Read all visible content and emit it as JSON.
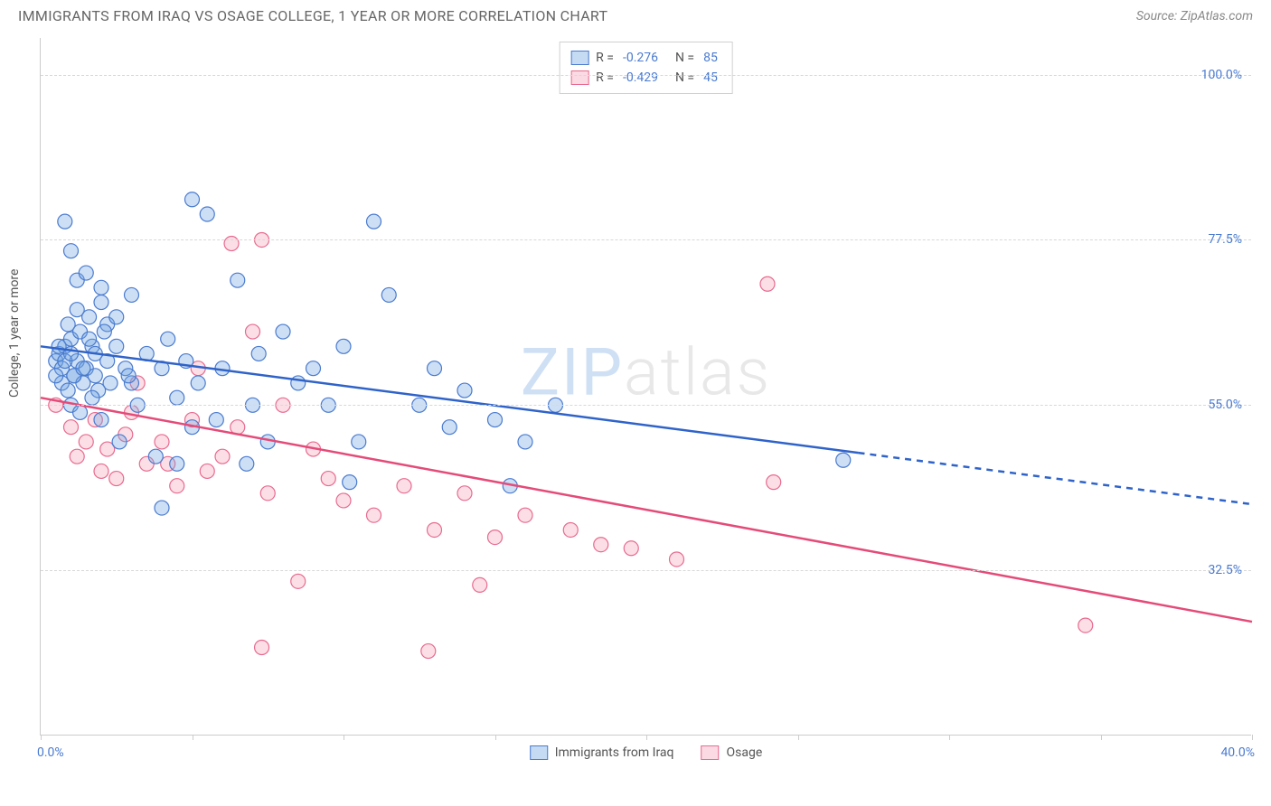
{
  "header": {
    "title": "IMMIGRANTS FROM IRAQ VS OSAGE COLLEGE, 1 YEAR OR MORE CORRELATION CHART",
    "source": "Source: ZipAtlas.com"
  },
  "chart": {
    "type": "scatter",
    "ylabel": "College, 1 year or more",
    "xlim": [
      0,
      40
    ],
    "ylim": [
      10,
      105
    ],
    "xticks": [
      0,
      5,
      10,
      15,
      20,
      25,
      30,
      35,
      40
    ],
    "x_label_min": "0.0%",
    "x_label_max": "40.0%",
    "yticks": [
      {
        "v": 32.5,
        "label": "32.5%"
      },
      {
        "v": 55.0,
        "label": "55.0%"
      },
      {
        "v": 77.5,
        "label": "77.5%"
      },
      {
        "v": 100.0,
        "label": "100.0%"
      }
    ],
    "background_color": "#ffffff",
    "grid_color": "#d8d8d8",
    "marker_radius": 8,
    "marker_fill_opacity": 0.35,
    "marker_stroke_width": 1.2,
    "line_width": 2.5,
    "dash_pattern": "7 6",
    "watermark": {
      "part1": "ZIP",
      "part2": "atlas"
    }
  },
  "series": {
    "blue": {
      "name": "Immigrants from Iraq",
      "color": "#6fa3e0",
      "stroke": "#4a7bd0",
      "line_color": "#2f63c9",
      "R": "-0.276",
      "N": "85",
      "trend": {
        "x1": 0,
        "y1": 63,
        "x2": 27,
        "y2": 48.5
      },
      "trend_ext": {
        "x1": 27,
        "y1": 48.5,
        "x2": 40,
        "y2": 41.5
      },
      "points": [
        [
          0.5,
          61
        ],
        [
          0.6,
          62
        ],
        [
          0.7,
          60
        ],
        [
          0.8,
          63
        ],
        [
          1.0,
          64
        ],
        [
          1.1,
          59
        ],
        [
          1.2,
          61
        ],
        [
          1.3,
          65
        ],
        [
          1.4,
          58
        ],
        [
          1.5,
          60
        ],
        [
          1.6,
          67
        ],
        [
          1.7,
          63
        ],
        [
          1.8,
          62
        ],
        [
          1.9,
          57
        ],
        [
          2.0,
          69
        ],
        [
          0.8,
          80
        ],
        [
          1.0,
          76
        ],
        [
          1.2,
          72
        ],
        [
          1.5,
          73
        ],
        [
          2.0,
          71
        ],
        [
          2.2,
          66
        ],
        [
          2.5,
          63
        ],
        [
          2.8,
          60
        ],
        [
          3.0,
          58
        ],
        [
          3.0,
          70
        ],
        [
          3.2,
          55
        ],
        [
          3.5,
          62
        ],
        [
          3.8,
          48
        ],
        [
          4.0,
          60
        ],
        [
          4.2,
          64
        ],
        [
          4.5,
          56
        ],
        [
          4.8,
          61
        ],
        [
          5.0,
          83
        ],
        [
          5.2,
          58
        ],
        [
          5.5,
          81
        ],
        [
          5.8,
          53
        ],
        [
          6.0,
          60
        ],
        [
          6.5,
          72
        ],
        [
          6.8,
          47
        ],
        [
          7.0,
          55
        ],
        [
          7.2,
          62
        ],
        [
          7.5,
          50
        ],
        [
          8.0,
          65
        ],
        [
          8.5,
          58
        ],
        [
          4.0,
          41
        ],
        [
          4.5,
          47
        ],
        [
          5.0,
          52
        ],
        [
          9.0,
          60
        ],
        [
          9.5,
          55
        ],
        [
          10.0,
          63
        ],
        [
          10.5,
          50
        ],
        [
          11.0,
          80
        ],
        [
          11.5,
          70
        ],
        [
          10.2,
          44.5
        ],
        [
          12.5,
          55
        ],
        [
          13.0,
          60
        ],
        [
          13.5,
          52
        ],
        [
          14.0,
          57
        ],
        [
          15.0,
          53
        ],
        [
          15.5,
          44
        ],
        [
          16.0,
          50
        ],
        [
          17.0,
          55
        ],
        [
          26.5,
          47.5
        ],
        [
          1.0,
          55
        ],
        [
          1.3,
          54
        ],
        [
          1.7,
          56
        ],
        [
          2.0,
          53
        ],
        [
          2.3,
          58
        ],
        [
          2.6,
          50
        ],
        [
          2.9,
          59
        ],
        [
          0.9,
          66
        ],
        [
          1.2,
          68
        ],
        [
          1.6,
          64
        ],
        [
          2.1,
          65
        ],
        [
          2.5,
          67
        ],
        [
          0.7,
          58
        ],
        [
          0.9,
          57
        ],
        [
          1.1,
          59
        ],
        [
          0.6,
          63
        ],
        [
          0.8,
          61
        ],
        [
          1.0,
          62
        ],
        [
          1.4,
          60
        ],
        [
          1.8,
          59
        ],
        [
          2.2,
          61
        ],
        [
          0.5,
          59
        ]
      ]
    },
    "pink": {
      "name": "Osage",
      "color": "#f5a3b8",
      "stroke": "#e86a8f",
      "line_color": "#e44b79",
      "R": "-0.429",
      "N": "45",
      "trend": {
        "x1": 0,
        "y1": 56,
        "x2": 40,
        "y2": 25.5
      },
      "points": [
        [
          0.5,
          55
        ],
        [
          1.0,
          52
        ],
        [
          1.2,
          48
        ],
        [
          1.5,
          50
        ],
        [
          1.8,
          53
        ],
        [
          2.0,
          46
        ],
        [
          2.2,
          49
        ],
        [
          2.5,
          45
        ],
        [
          2.8,
          51
        ],
        [
          3.0,
          54
        ],
        [
          3.5,
          47
        ],
        [
          4.0,
          50
        ],
        [
          4.5,
          44
        ],
        [
          5.0,
          53
        ],
        [
          5.2,
          60
        ],
        [
          5.5,
          46
        ],
        [
          6.0,
          48
        ],
        [
          6.3,
          77
        ],
        [
          6.5,
          52
        ],
        [
          7.0,
          65
        ],
        [
          7.3,
          77.5
        ],
        [
          7.5,
          43
        ],
        [
          8.0,
          55
        ],
        [
          8.5,
          31
        ],
        [
          9.0,
          49
        ],
        [
          9.5,
          45
        ],
        [
          10.0,
          42
        ],
        [
          7.3,
          22
        ],
        [
          11.0,
          40
        ],
        [
          12.0,
          44
        ],
        [
          12.8,
          21.5
        ],
        [
          13.0,
          38
        ],
        [
          14.0,
          43
        ],
        [
          14.5,
          30.5
        ],
        [
          15.0,
          37
        ],
        [
          16.0,
          40
        ],
        [
          17.5,
          38
        ],
        [
          18.5,
          36
        ],
        [
          19.5,
          35.5
        ],
        [
          21.0,
          34
        ],
        [
          24.0,
          71.5
        ],
        [
          24.2,
          44.5
        ],
        [
          34.5,
          25
        ],
        [
          3.2,
          58
        ],
        [
          4.2,
          47
        ]
      ]
    }
  },
  "legend_bottom": [
    {
      "key": "blue",
      "label": "Immigrants from Iraq"
    },
    {
      "key": "pink",
      "label": "Osage"
    }
  ]
}
